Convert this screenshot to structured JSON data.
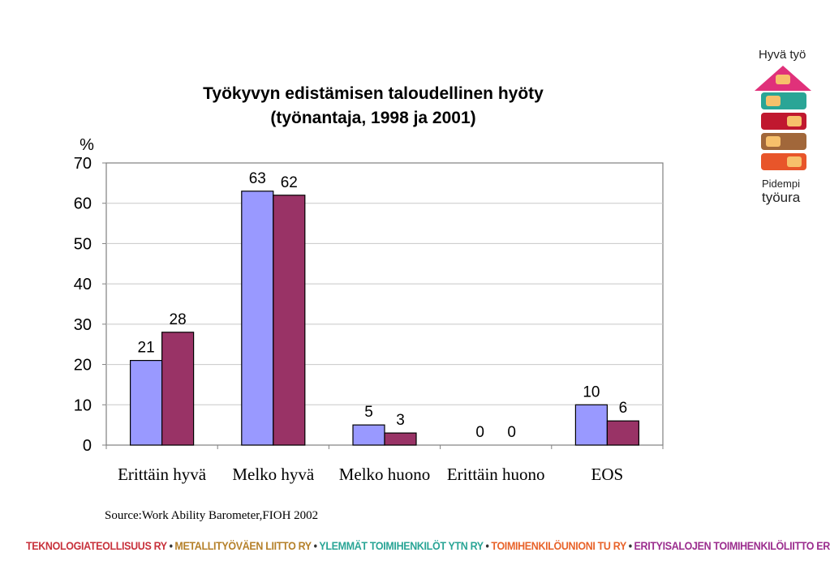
{
  "chart_data": {
    "type": "bar",
    "title": "Työkyvyn edistämisen taloudellinen hyöty",
    "subtitle": "(työnantaja, 1998 ja 2001)",
    "ylabel": "%",
    "xlabel": "",
    "ylim": [
      0,
      70
    ],
    "yticks": [
      "0",
      "10",
      "20",
      "30",
      "40",
      "50",
      "60",
      "70"
    ],
    "grid": true,
    "legend": "none",
    "categories": [
      "Erittäin hyvä",
      "Melko hyvä",
      "Melko huono",
      "Erittäin huono",
      "EOS"
    ],
    "series": [
      {
        "values": [
          21,
          63,
          5,
          0,
          10
        ],
        "color": "#9999ff"
      },
      {
        "values": [
          28,
          62,
          3,
          0,
          6
        ],
        "color": "#993366"
      }
    ]
  },
  "source": "Source:Work Ability Barometer,FIOH 2002",
  "footer": [
    {
      "text": "TEKNOLOGIATEOLLISUUS RY",
      "color": "#c8323c"
    },
    {
      "text": "METALLITYÖVÄEN LIITTO RY",
      "color": "#b5802a"
    },
    {
      "text": "YLEMMÄT TOIMIHENKILÖT YTN RY",
      "color": "#2aa596"
    },
    {
      "text": "TOIMIHENKILÖUNIONI TU RY",
      "color": "#e8632a"
    },
    {
      "text": "ERITYISALOJEN TOIMIHENKILÖLIITTO ERTO RY",
      "color": "#9b2d8e"
    }
  ],
  "footer_separator": "•",
  "logo": {
    "top_text": "Hyvä työ",
    "bottom_line1": "Pidempi",
    "bottom_line2": "työura",
    "colors": [
      "#e0317a",
      "#2aa596",
      "#c0182f",
      "#a1673a",
      "#e8552a"
    ],
    "window_color": "#f7c06b"
  }
}
